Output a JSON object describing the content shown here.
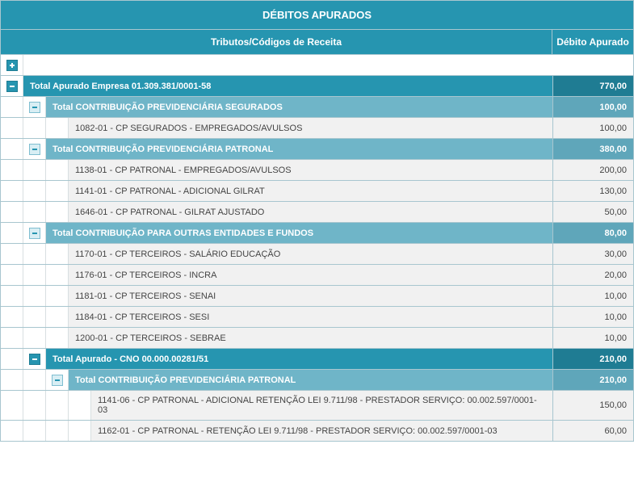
{
  "title": "DÉBITOS APURADOS",
  "headers": {
    "code": "Tributos/Códigos de Receita",
    "value": "Débito Apurado"
  },
  "colors": {
    "primary": "#2695b0",
    "primary_dark": "#1f7c93",
    "group": "#6fb5c8",
    "group_dark": "#5fa6ba",
    "leaf_bg": "#f1f1f1",
    "leaf_text": "#444444",
    "border": "#a8c6cf"
  },
  "rows": [
    {
      "type": "spacer_plus"
    },
    {
      "type": "lvl0",
      "label": "Total Apurado Empresa 01.309.381/0001-58",
      "value": "770,00"
    },
    {
      "type": "lvl1",
      "indent": 1,
      "label": "Total CONTRIBUIÇÃO PREVIDENCIÁRIA SEGURADOS",
      "value": "100,00"
    },
    {
      "type": "leaf",
      "indent": 2,
      "label": "1082-01 - CP SEGURADOS - EMPREGADOS/AVULSOS",
      "value": "100,00"
    },
    {
      "type": "lvl1",
      "indent": 1,
      "label": "Total CONTRIBUIÇÃO PREVIDENCIÁRIA PATRONAL",
      "value": "380,00"
    },
    {
      "type": "leaf",
      "indent": 2,
      "label": "1138-01 - CP PATRONAL - EMPREGADOS/AVULSOS",
      "value": "200,00"
    },
    {
      "type": "leaf",
      "indent": 2,
      "label": "1141-01 - CP PATRONAL - ADICIONAL GILRAT",
      "value": "130,00"
    },
    {
      "type": "leaf",
      "indent": 2,
      "label": "1646-01 - CP PATRONAL - GILRAT AJUSTADO",
      "value": "50,00"
    },
    {
      "type": "lvl1",
      "indent": 1,
      "label": "Total CONTRIBUIÇÃO PARA OUTRAS ENTIDADES E FUNDOS",
      "value": "80,00"
    },
    {
      "type": "leaf",
      "indent": 2,
      "label": "1170-01 - CP TERCEIROS - SALÁRIO EDUCAÇÃO",
      "value": "30,00"
    },
    {
      "type": "leaf",
      "indent": 2,
      "label": "1176-01 - CP TERCEIROS - INCRA",
      "value": "20,00"
    },
    {
      "type": "leaf",
      "indent": 2,
      "label": "1181-01 - CP TERCEIROS - SENAI",
      "value": "10,00"
    },
    {
      "type": "leaf",
      "indent": 2,
      "label": "1184-01 - CP TERCEIROS - SESI",
      "value": "10,00"
    },
    {
      "type": "leaf",
      "indent": 2,
      "label": "1200-01 - CP TERCEIROS - SEBRAE",
      "value": "10,00"
    },
    {
      "type": "lvl0",
      "indent": 1,
      "label": "Total Apurado - CNO 00.000.00281/51",
      "value": "210,00",
      "toggle_indent": 1
    },
    {
      "type": "lvl1",
      "indent": 2,
      "label": "Total CONTRIBUIÇÃO PREVIDENCIÁRIA PATRONAL",
      "value": "210,00",
      "toggle_indent": 2
    },
    {
      "type": "leaf",
      "indent": 3,
      "label": "1141-06 - CP PATRONAL - ADICIONAL RETENÇÃO LEI 9.711/98 - PRESTADOR SERVIÇO: 00.002.597/0001-03",
      "value": "150,00"
    },
    {
      "type": "leaf",
      "indent": 3,
      "label": "1162-01 - CP PATRONAL - RETENÇÃO LEI 9.711/98 - PRESTADOR SERVIÇO: 00.002.597/0001-03",
      "value": "60,00"
    }
  ]
}
